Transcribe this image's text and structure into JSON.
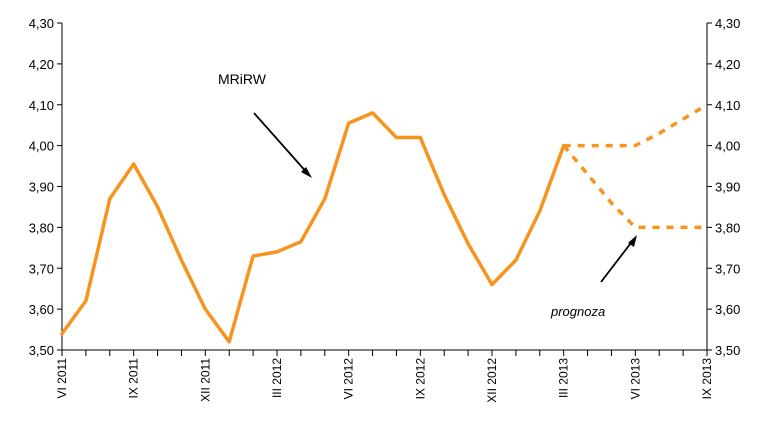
{
  "chart_data": {
    "type": "line",
    "ylim": [
      3.5,
      4.3
    ],
    "y_ticks": [
      "3,50",
      "3,60",
      "3,70",
      "3,80",
      "3,90",
      "4,00",
      "4,10",
      "4,20",
      "4,30"
    ],
    "y_tick_values": [
      3.5,
      3.6,
      3.7,
      3.8,
      3.9,
      4.0,
      4.1,
      4.2,
      4.3
    ],
    "x_tick_labels": [
      "VI 2011",
      "IX 2011",
      "XII 2011",
      "III 2012",
      "VI 2012",
      "IX 2012",
      "XII 2012",
      "III 2013",
      "VI 2013",
      "IX 2013"
    ],
    "x_tick_label_months": [
      0,
      3,
      6,
      9,
      12,
      15,
      18,
      21,
      24,
      27
    ],
    "x_month_count": 28,
    "grid": false,
    "series": [
      {
        "name": "MRiRW",
        "style": "solid",
        "color": "#F7941D",
        "values": [
          3.54,
          3.62,
          3.87,
          3.955,
          3.85,
          3.72,
          3.6,
          3.52,
          3.73,
          3.74,
          3.765,
          3.87,
          4.055,
          4.08,
          4.02,
          4.02,
          3.88,
          3.76,
          3.66,
          3.72,
          3.84,
          4.0
        ]
      },
      {
        "name": "prognoza",
        "style": "dashed",
        "color": "#F7941D",
        "x": [
          21,
          22,
          23,
          24,
          25,
          26,
          27
        ],
        "values": [
          4.0,
          4.0,
          4.0,
          4.0,
          4.03,
          4.065,
          4.1
        ]
      },
      {
        "name": "prognoza",
        "style": "dashed",
        "color": "#F7941D",
        "x": [
          21,
          22,
          23,
          24,
          25,
          26,
          27
        ],
        "values": [
          4.0,
          3.93,
          3.86,
          3.8,
          3.8,
          3.8,
          3.8
        ]
      }
    ],
    "annotations": [
      {
        "text": "MRiRW"
      },
      {
        "text": "prognoza"
      }
    ]
  }
}
